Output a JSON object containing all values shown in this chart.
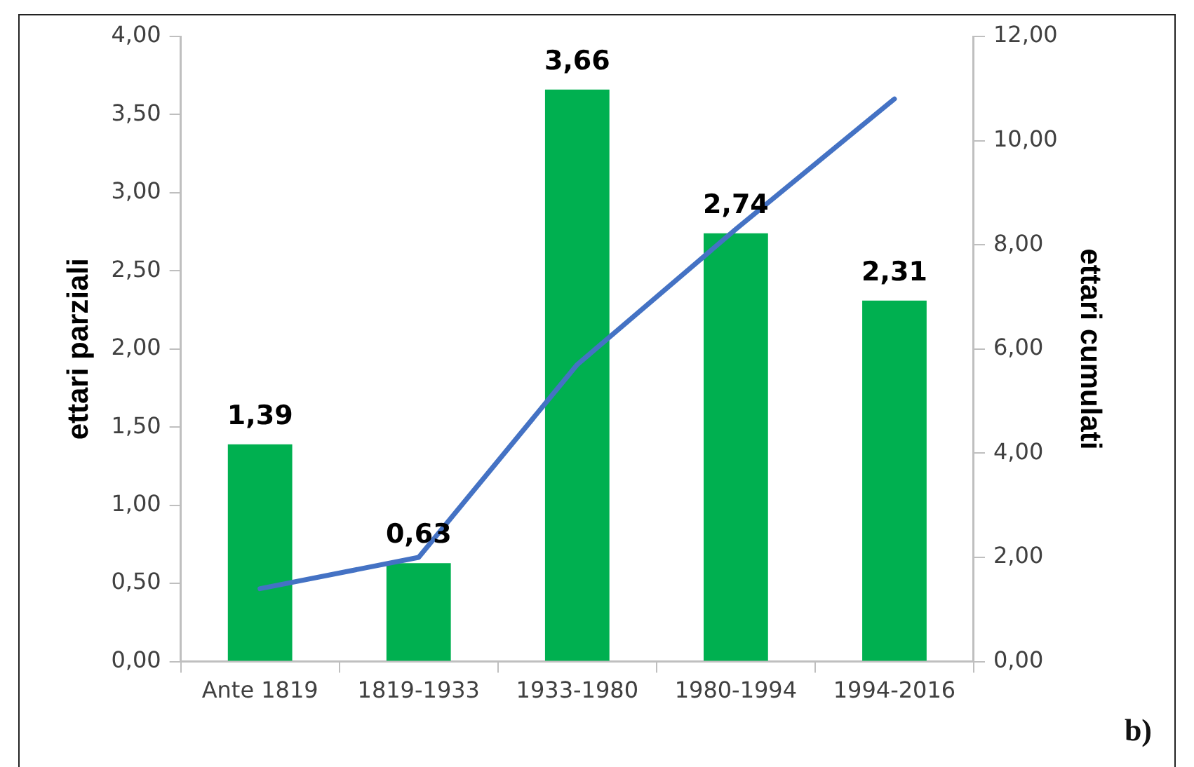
{
  "chart_data": {
    "type": "bar",
    "categories": [
      "Ante 1819",
      "1819-1933",
      "1933-1980",
      "1980-1994",
      "1994-2016"
    ],
    "ylabel": "ettari parziali",
    "y2label": "ettari cumulati",
    "ylim": [
      0,
      4
    ],
    "yticks": [
      {
        "value": 0,
        "label": "0,00"
      },
      {
        "value": 0.5,
        "label": "0,50"
      },
      {
        "value": 1,
        "label": "1,00"
      },
      {
        "value": 1.5,
        "label": "1,50"
      },
      {
        "value": 2,
        "label": "2,00"
      },
      {
        "value": 2.5,
        "label": "2,50"
      },
      {
        "value": 3,
        "label": "3,00"
      },
      {
        "value": 3.5,
        "label": "3,50"
      },
      {
        "value": 4,
        "label": "4,00"
      }
    ],
    "y2lim": [
      0,
      12
    ],
    "y2ticks": [
      {
        "value": 0,
        "label": "0,00"
      },
      {
        "value": 2,
        "label": "2,00"
      },
      {
        "value": 4,
        "label": "4,00"
      },
      {
        "value": 6,
        "label": "6,00"
      },
      {
        "value": 8,
        "label": "8,00"
      },
      {
        "value": 10,
        "label": "10,00"
      },
      {
        "value": 12,
        "label": "12,00"
      }
    ],
    "series": [
      {
        "color": "#00b050",
        "values": [
          1.39,
          0.63,
          3.66,
          2.74,
          2.31
        ],
        "value_labels": [
          "1,39",
          "0,63",
          "3,66",
          "2,74",
          "2,31"
        ]
      },
      {
        "type": "line",
        "axis": "y2",
        "color": "#4472c4",
        "values": [
          1.4,
          2.0,
          5.7,
          8.3,
          10.8
        ]
      }
    ],
    "marker": "none",
    "line_style": "solid",
    "grid": false,
    "legend": false,
    "annotations": [
      "b)"
    ]
  }
}
